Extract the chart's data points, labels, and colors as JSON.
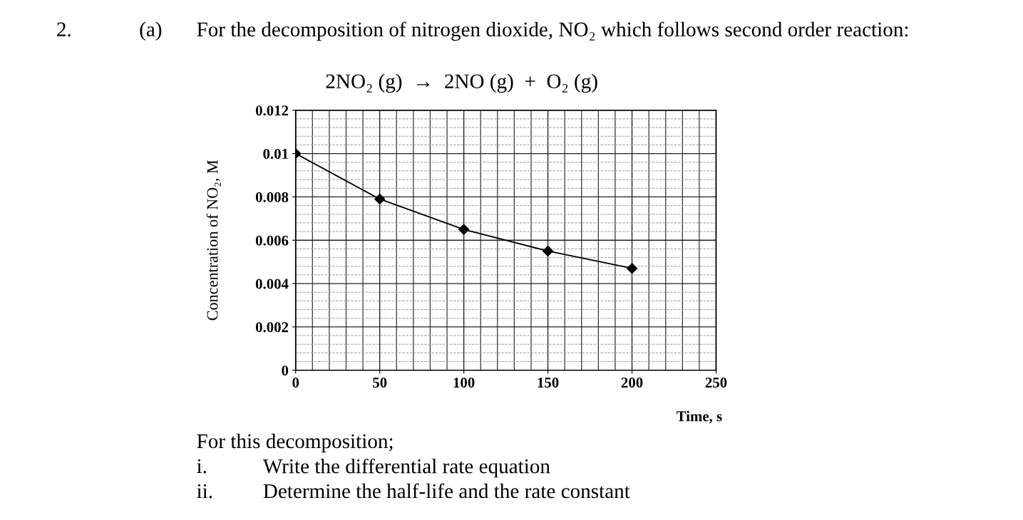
{
  "chart_data": {
    "type": "line",
    "title": "For the decomposition of nitrogen dioxide, NO₂ which follows second order reaction:",
    "subtitle": "2NO₂ (g)  →  2NO (g)  +  O₂ (g)",
    "xlabel": "Time, s",
    "ylabel": "Concentration of NO₂, M",
    "x": [
      0,
      50,
      100,
      150,
      200
    ],
    "series": [
      {
        "color": "#000000",
        "values": [
          0.01,
          0.0079,
          0.0065,
          0.0055,
          0.0047
        ]
      }
    ],
    "xlim": [
      0,
      250
    ],
    "xticks": [
      0,
      50,
      100,
      150,
      200,
      250
    ],
    "ylim": [
      0,
      0.012
    ],
    "yticks": [
      0,
      0.002,
      0.004,
      0.006,
      0.008,
      0.01,
      0.012
    ],
    "grid": true,
    "marker": "diamond",
    "line_style": "solid",
    "annotations": [
      "2.",
      "(a)",
      "For this decomposition;",
      "i.",
      "Write the differential rate equation",
      "ii.",
      "Determine the half-life and the rate constant"
    ]
  }
}
